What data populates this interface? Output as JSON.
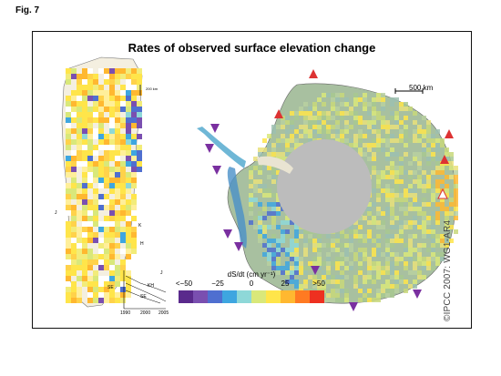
{
  "figure_label": "Fig. 7",
  "title": "Rates of observed surface elevation change",
  "legend": {
    "title": "dS/dt (cm yr⁻¹)",
    "ticks": [
      "<−50",
      "−25",
      "0",
      "25",
      ">50"
    ],
    "colors": [
      "#5a2a8c",
      "#7a4fb0",
      "#4f6fd0",
      "#3ea6e0",
      "#8ed8d8",
      "#d9e87a",
      "#ffe54a",
      "#ffb830",
      "#ff7a22",
      "#ee3020"
    ]
  },
  "antarctica_scale_label": "500 km",
  "greenland_scale_label": "200 km",
  "greenland_labels": [
    "J",
    "K",
    "H",
    "SE"
  ],
  "inset_labels": [
    "J",
    "KH",
    "SE",
    "1990",
    "2000",
    "2005"
  ],
  "credit": "©IPCC 2007: WG1-AR4"
}
